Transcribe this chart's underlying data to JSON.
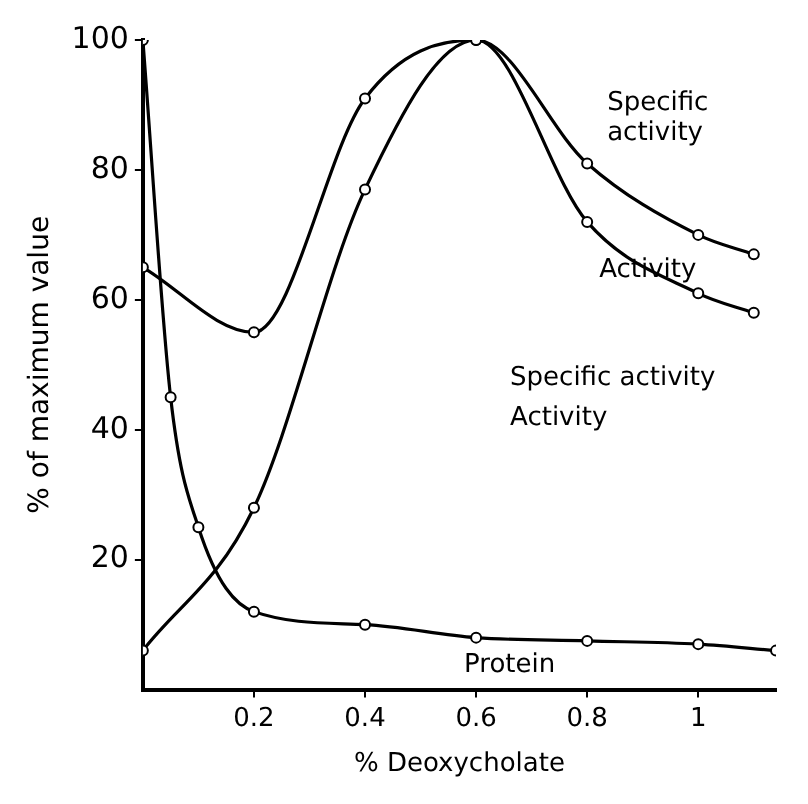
{
  "chart_data": {
    "type": "line",
    "xlabel": "% Deoxycholate",
    "ylabel": "% of maximum value",
    "series": [
      {
        "name": "Specific activity",
        "color": "#000000",
        "x": [
          0,
          0.2,
          0.4,
          0.6,
          0.8,
          1.0,
          1.1
        ],
        "values": [
          65,
          55,
          91,
          100,
          81,
          70,
          67
        ]
      },
      {
        "name": "Activity",
        "color": "#000000",
        "x": [
          0,
          0.2,
          0.4,
          0.6,
          0.8,
          1.0,
          1.1
        ],
        "values": [
          6,
          28,
          77,
          100,
          72,
          61,
          58
        ]
      },
      {
        "name": "Protein",
        "color": "#000000",
        "x": [
          0,
          0.05,
          0.1,
          0.2,
          0.4,
          0.6,
          0.8,
          1.0,
          1.14
        ],
        "values": [
          100,
          45,
          25,
          12,
          10,
          8,
          7.5,
          7,
          6
        ]
      }
    ],
    "annotations": [
      "Specific activity",
      "Activity"
    ],
    "xlim": [
      0,
      1.14
    ],
    "xticks": [
      0.2,
      0.4,
      0.6,
      0.8,
      1.0
    ],
    "ylim": [
      0,
      100
    ],
    "yticks": [
      20,
      40,
      60,
      80,
      100
    ],
    "grid": false,
    "legend": false,
    "marker": "circle",
    "line_style": "solid"
  }
}
